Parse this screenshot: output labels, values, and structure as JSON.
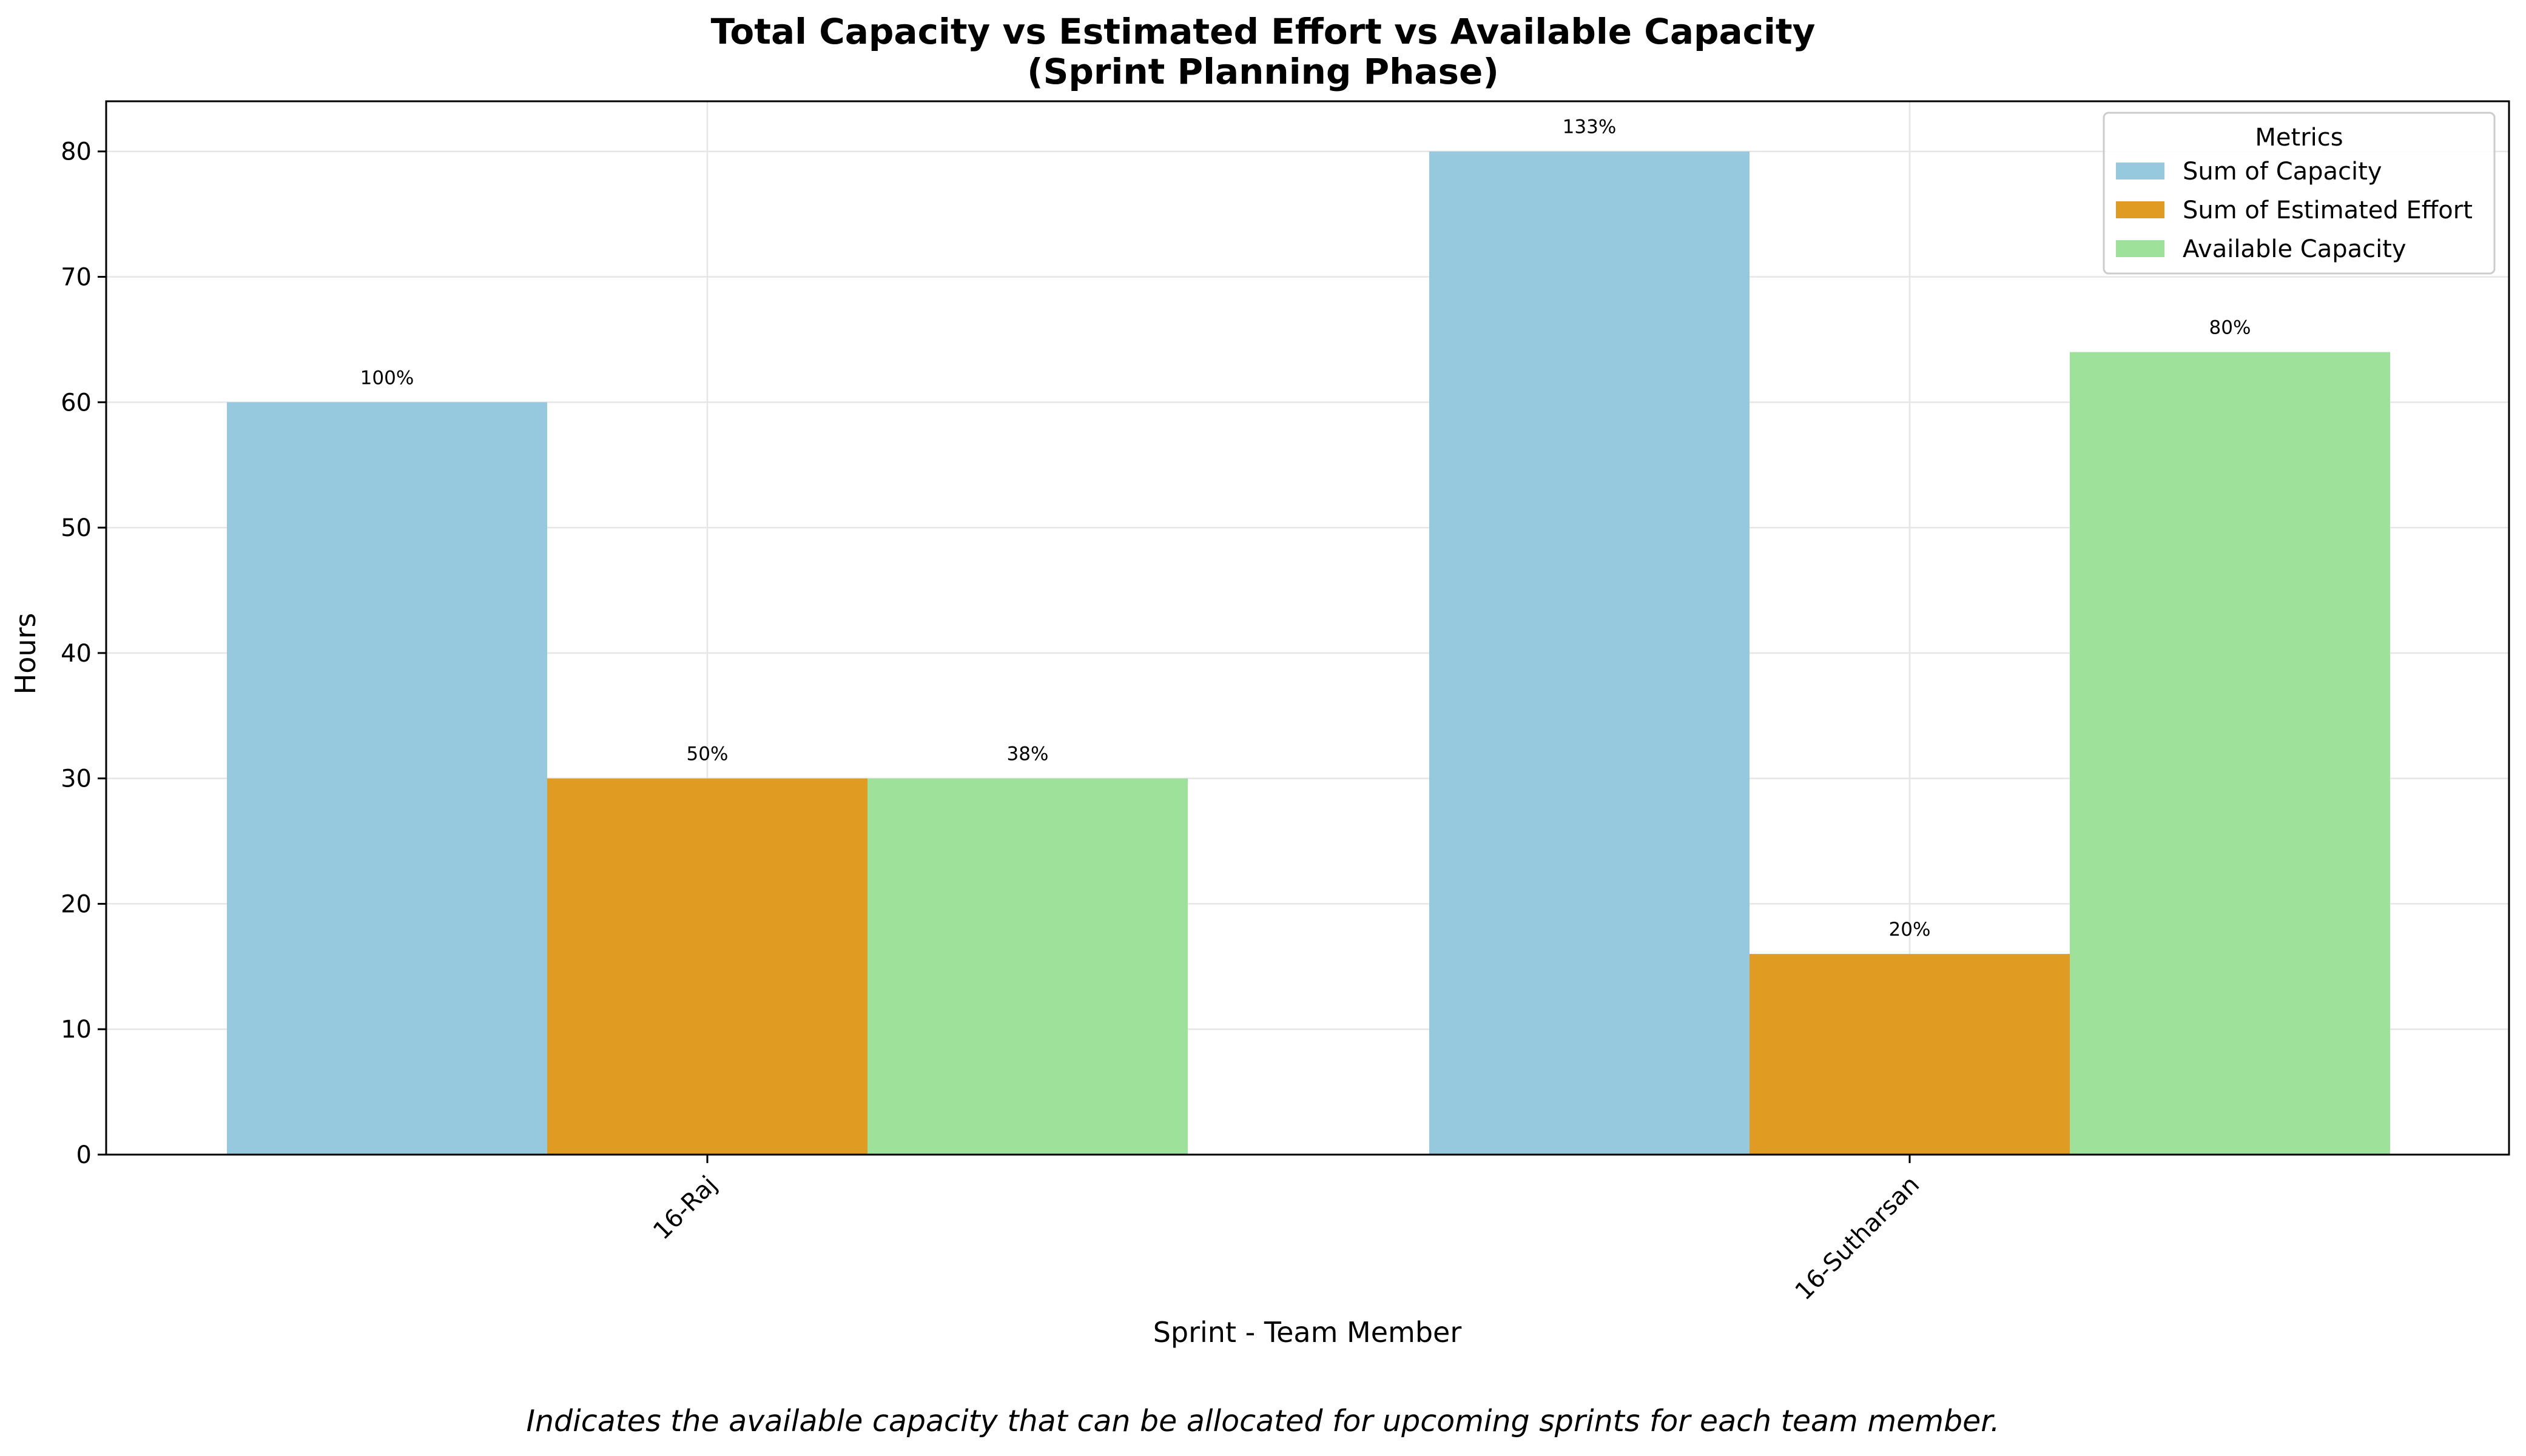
{
  "chart_data": {
    "type": "bar",
    "title": "Total Capacity vs Estimated Effort vs Available Capacity",
    "subtitle": "(Sprint Planning Phase)",
    "xlabel": "Sprint - Team Member",
    "ylabel": "Hours",
    "categories": [
      "16-Raj",
      "16-Sutharsan"
    ],
    "series": [
      {
        "name": "Sum of Capacity",
        "color": "#96c8de",
        "values": [
          60,
          80
        ],
        "labels": [
          "100%",
          "133%"
        ]
      },
      {
        "name": "Sum of Estimated Effort",
        "color": "#e09b22",
        "values": [
          30,
          16
        ],
        "labels": [
          "50%",
          "20%"
        ]
      },
      {
        "name": "Available Capacity",
        "color": "#9de19a",
        "values": [
          30,
          64
        ],
        "labels": [
          "38%",
          "80%"
        ]
      }
    ],
    "ylim": [
      0,
      84
    ],
    "yticks": [
      0,
      10,
      20,
      30,
      40,
      50,
      60,
      70,
      80
    ],
    "grid": true,
    "legend": {
      "title": "Metrics",
      "placement": "top-right"
    },
    "caption": "Indicates the available capacity that can be allocated for upcoming sprints for each team member."
  }
}
